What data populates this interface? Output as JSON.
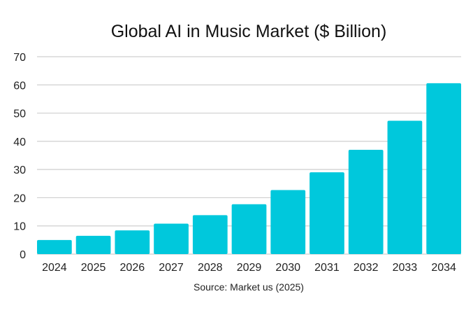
{
  "chart_data": {
    "type": "bar",
    "title": "Global AI in Music Market ($ Billion)",
    "source": "Source: Market us (2025)",
    "categories": [
      "2024",
      "2025",
      "2026",
      "2027",
      "2028",
      "2029",
      "2030",
      "2031",
      "2032",
      "2033",
      "2034"
    ],
    "values": [
      5.0,
      6.5,
      8.4,
      10.8,
      13.8,
      17.7,
      22.7,
      29.0,
      37.0,
      47.3,
      60.6
    ],
    "ylim": [
      0,
      70
    ],
    "yticks": [
      0,
      10,
      20,
      30,
      40,
      50,
      60,
      70
    ],
    "grid": true,
    "bar_color": "#00C8DC",
    "xlabel": "",
    "ylabel": ""
  }
}
